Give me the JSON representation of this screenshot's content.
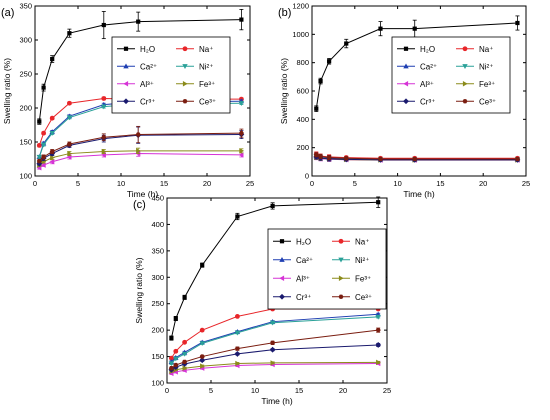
{
  "chart_data": [
    {
      "panel": "(a)",
      "type": "line",
      "xlabel": "Time (h)",
      "ylabel": "Swelling ratio (%)",
      "xlim": [
        0,
        25
      ],
      "ylim": [
        100,
        350
      ],
      "xticks": [
        0,
        5,
        10,
        15,
        20,
        25
      ],
      "yticks": [
        100,
        150,
        200,
        250,
        300,
        350
      ],
      "legend": "top-right",
      "x": [
        0.5,
        1,
        2,
        4,
        8,
        12,
        24
      ],
      "series": [
        {
          "name": "H2O",
          "label": "H₂O",
          "color": "#000000",
          "marker": "square",
          "values": [
            180,
            230,
            272,
            310,
            322,
            327,
            330
          ],
          "errors": [
            4,
            5,
            5,
            6,
            20,
            14,
            15
          ]
        },
        {
          "name": "Na+",
          "label": "Na⁺",
          "color": "#e8262a",
          "marker": "circle",
          "values": [
            145,
            163,
            185,
            207,
            214,
            213,
            213
          ],
          "errors": [
            2,
            2,
            2,
            2,
            2,
            2,
            2
          ]
        },
        {
          "name": "Ca2+",
          "label": "Ca²⁺",
          "color": "#1f3fb2",
          "marker": "triangle-up",
          "values": [
            128,
            148,
            165,
            188,
            205,
            209,
            210
          ],
          "errors": [
            2,
            2,
            2,
            2,
            2,
            2,
            2
          ]
        },
        {
          "name": "Ni2+",
          "label": "Ni²⁺",
          "color": "#2aa198",
          "marker": "triangle-down",
          "values": [
            128,
            146,
            163,
            186,
            202,
            206,
            207
          ],
          "errors": [
            2,
            2,
            2,
            2,
            2,
            2,
            2
          ]
        },
        {
          "name": "Al3+",
          "label": "Al³⁺",
          "color": "#d633d6",
          "marker": "triangle-left",
          "values": [
            112,
            116,
            121,
            128,
            131,
            133,
            131
          ],
          "errors": [
            2,
            2,
            3,
            3,
            3,
            4,
            3
          ]
        },
        {
          "name": "Fe3+",
          "label": "Fe³⁺",
          "color": "#8b8b1a",
          "marker": "triangle-right",
          "values": [
            116,
            121,
            127,
            133,
            136,
            137,
            137
          ],
          "errors": [
            2,
            2,
            3,
            3,
            3,
            4,
            3
          ]
        },
        {
          "name": "Cr3+",
          "label": "Cr³⁺",
          "color": "#1a1a6e",
          "marker": "diamond",
          "values": [
            118,
            126,
            133,
            145,
            155,
            160,
            161
          ],
          "errors": [
            2,
            3,
            3,
            3,
            5,
            12,
            6
          ]
        },
        {
          "name": "Ce3+",
          "label": "Ce³⁺",
          "color": "#7a1d10",
          "marker": "hexagon",
          "values": [
            122,
            128,
            136,
            147,
            157,
            161,
            163
          ],
          "errors": [
            2,
            3,
            3,
            3,
            5,
            12,
            6
          ]
        }
      ]
    },
    {
      "panel": "(b)",
      "type": "line",
      "xlabel": "Time (h)",
      "ylabel": "Swelling ratio (%)",
      "xlim": [
        0,
        25
      ],
      "ylim": [
        0,
        1200
      ],
      "xticks": [
        0,
        5,
        10,
        15,
        20,
        25
      ],
      "yticks": [
        0,
        200,
        400,
        600,
        800,
        1000,
        1200
      ],
      "legend": "top-right",
      "x": [
        0.5,
        1,
        2,
        4,
        8,
        12,
        24
      ],
      "series": [
        {
          "name": "H2O",
          "label": "H₂O",
          "color": "#000000",
          "marker": "square",
          "values": [
            475,
            670,
            810,
            935,
            1040,
            1040,
            1080
          ],
          "errors": [
            20,
            20,
            20,
            30,
            50,
            60,
            50
          ]
        },
        {
          "name": "Na+",
          "label": "Na⁺",
          "color": "#e8262a",
          "marker": "circle",
          "values": [
            155,
            140,
            135,
            130,
            125,
            125,
            125
          ],
          "errors": [
            15,
            15,
            15,
            10,
            10,
            10,
            10
          ]
        },
        {
          "name": "Ca2+",
          "label": "Ca²⁺",
          "color": "#1f3fb2",
          "marker": "triangle-up",
          "values": [
            140,
            130,
            125,
            120,
            118,
            118,
            118
          ],
          "errors": [
            15,
            15,
            15,
            10,
            10,
            10,
            10
          ]
        },
        {
          "name": "Ni2+",
          "label": "Ni²⁺",
          "color": "#2aa198",
          "marker": "triangle-down",
          "values": [
            138,
            128,
            122,
            118,
            116,
            116,
            116
          ],
          "errors": [
            15,
            15,
            15,
            10,
            10,
            10,
            10
          ]
        },
        {
          "name": "Al3+",
          "label": "Al³⁺",
          "color": "#d633d6",
          "marker": "triangle-left",
          "values": [
            130,
            122,
            118,
            115,
            112,
            112,
            112
          ],
          "errors": [
            15,
            15,
            15,
            10,
            10,
            10,
            10
          ]
        },
        {
          "name": "Fe3+",
          "label": "Fe³⁺",
          "color": "#8b8b1a",
          "marker": "triangle-right",
          "values": [
            132,
            124,
            120,
            116,
            113,
            113,
            113
          ],
          "errors": [
            15,
            15,
            15,
            10,
            10,
            10,
            10
          ]
        },
        {
          "name": "Cr3+",
          "label": "Cr³⁺",
          "color": "#1a1a6e",
          "marker": "diamond",
          "values": [
            135,
            126,
            121,
            117,
            114,
            114,
            114
          ],
          "errors": [
            15,
            15,
            15,
            10,
            10,
            10,
            10
          ]
        },
        {
          "name": "Ce3+",
          "label": "Ce³⁺",
          "color": "#7a1d10",
          "marker": "hexagon",
          "values": [
            150,
            138,
            130,
            125,
            120,
            120,
            120
          ],
          "errors": [
            15,
            15,
            15,
            10,
            10,
            10,
            10
          ]
        }
      ]
    },
    {
      "panel": "(c)",
      "type": "line",
      "xlabel": "Time (h)",
      "ylabel": "Swelling ratio (%)",
      "xlim": [
        0,
        25
      ],
      "ylim": [
        100,
        450
      ],
      "xticks": [
        0,
        5,
        10,
        15,
        20,
        25
      ],
      "yticks": [
        100,
        150,
        200,
        250,
        300,
        350,
        400,
        450
      ],
      "legend": "top-right",
      "x": [
        0.5,
        1,
        2,
        4,
        8,
        12,
        24
      ],
      "series": [
        {
          "name": "H2O",
          "label": "H₂O",
          "color": "#000000",
          "marker": "square",
          "values": [
            185,
            222,
            262,
            323,
            415,
            435,
            442
          ],
          "errors": [
            4,
            4,
            4,
            4,
            6,
            6,
            10
          ]
        },
        {
          "name": "Na+",
          "label": "Na⁺",
          "color": "#e8262a",
          "marker": "circle",
          "values": [
            147,
            160,
            177,
            200,
            226,
            240,
            240
          ],
          "errors": [
            2,
            2,
            2,
            2,
            2,
            2,
            2
          ]
        },
        {
          "name": "Ca2+",
          "label": "Ca²⁺",
          "color": "#1f3fb2",
          "marker": "triangle-up",
          "values": [
            140,
            148,
            158,
            177,
            197,
            216,
            230
          ],
          "errors": [
            2,
            2,
            2,
            2,
            2,
            2,
            2
          ]
        },
        {
          "name": "Ni2+",
          "label": "Ni²⁺",
          "color": "#2aa198",
          "marker": "triangle-down",
          "values": [
            137,
            146,
            155,
            175,
            195,
            214,
            225
          ],
          "errors": [
            2,
            2,
            2,
            2,
            2,
            2,
            2
          ]
        },
        {
          "name": "Al3+",
          "label": "Al³⁺",
          "color": "#d633d6",
          "marker": "triangle-left",
          "values": [
            118,
            121,
            124,
            128,
            133,
            135,
            137
          ],
          "errors": [
            2,
            2,
            2,
            2,
            2,
            2,
            2
          ]
        },
        {
          "name": "Fe3+",
          "label": "Fe³⁺",
          "color": "#8b8b1a",
          "marker": "triangle-right",
          "values": [
            122,
            125,
            128,
            132,
            137,
            138,
            139
          ],
          "errors": [
            2,
            2,
            2,
            2,
            2,
            2,
            2
          ]
        },
        {
          "name": "Cr3+",
          "label": "Cr³⁺",
          "color": "#1a1a6e",
          "marker": "diamond",
          "values": [
            125,
            130,
            136,
            143,
            155,
            163,
            172
          ],
          "errors": [
            2,
            2,
            2,
            2,
            2,
            2,
            3
          ]
        },
        {
          "name": "Ce3+",
          "label": "Ce³⁺",
          "color": "#7a1d10",
          "marker": "hexagon",
          "values": [
            128,
            134,
            140,
            150,
            165,
            176,
            200
          ],
          "errors": [
            2,
            2,
            2,
            2,
            3,
            3,
            4
          ]
        }
      ]
    }
  ]
}
